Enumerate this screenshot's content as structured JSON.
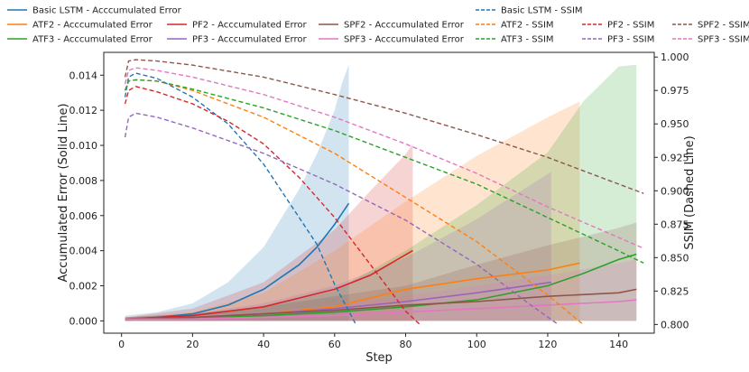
{
  "chart_data": {
    "type": "line",
    "title": "",
    "xlabel": "Step",
    "ylabel_left": "Accumulated Error (Solid Line)",
    "ylabel_right": "SSIM (Dashed Line)",
    "xlim": [
      -5,
      150
    ],
    "ylim_left": [
      -0.0007,
      0.0153
    ],
    "ylim_right": [
      0.7935,
      1.0035
    ],
    "x_ticks": [
      0,
      20,
      40,
      60,
      80,
      100,
      120,
      140
    ],
    "y_left_ticks": [
      0.0,
      0.002,
      0.004,
      0.006,
      0.008,
      0.01,
      0.012,
      0.014
    ],
    "y_left_tick_labels": [
      "0.000",
      "0.002",
      "0.004",
      "0.006",
      "0.008",
      "0.010",
      "0.012",
      "0.014"
    ],
    "y_right_ticks": [
      0.8,
      0.825,
      0.85,
      0.875,
      0.9,
      0.925,
      0.95,
      0.975,
      1.0
    ],
    "y_right_tick_labels": [
      "0.800",
      "0.825",
      "0.850",
      "0.875",
      "0.900",
      "0.925",
      "0.950",
      "0.975",
      "1.000"
    ],
    "grid": false,
    "legend_placement": "top",
    "legend": [
      {
        "label": "Basic LSTM - Acccumulated Error",
        "color": "#1f77b4",
        "style": "solid"
      },
      {
        "label": "ATF2 - Acccumulated Error",
        "color": "#ff7f0e",
        "style": "solid"
      },
      {
        "label": "ATF3 - Acccumulated Error",
        "color": "#2ca02c",
        "style": "solid"
      },
      {
        "label": "PF2 - Acccumulated Error",
        "color": "#d62728",
        "style": "solid"
      },
      {
        "label": "PF3 - Acccumulated Error",
        "color": "#9467bd",
        "style": "solid"
      },
      {
        "label": "SPF2 - Acccumulated Error",
        "color": "#8c564b",
        "style": "solid"
      },
      {
        "label": "SPF3 - Acccumulated Error",
        "color": "#e377c2",
        "style": "solid"
      },
      {
        "label": "Basic LSTM - SSIM",
        "color": "#1f77b4",
        "style": "dashed"
      },
      {
        "label": "ATF2 - SSIM",
        "color": "#ff7f0e",
        "style": "dashed"
      },
      {
        "label": "ATF3 - SSIM",
        "color": "#2ca02c",
        "style": "dashed"
      },
      {
        "label": "PF2 - SSIM",
        "color": "#d62728",
        "style": "dashed"
      },
      {
        "label": "PF3 - SSIM",
        "color": "#9467bd",
        "style": "dashed"
      },
      {
        "label": "SPF2 - SSIM",
        "color": "#8c564b",
        "style": "dashed"
      },
      {
        "label": "SPF3 - SSIM",
        "color": "#e377c2",
        "style": "dashed"
      }
    ],
    "series": [
      {
        "name": "Basic LSTM",
        "color": "#1f77b4",
        "x_end": 64,
        "error": {
          "x": [
            1,
            10,
            20,
            30,
            40,
            50,
            55,
            60,
            64
          ],
          "y": [
            0.0001,
            0.0002,
            0.0004,
            0.0009,
            0.0018,
            0.0032,
            0.0042,
            0.0055,
            0.0067
          ]
        },
        "band": {
          "x": [
            1,
            10,
            20,
            30,
            40,
            50,
            55,
            60,
            62,
            64
          ],
          "upper": [
            0.0003,
            0.0005,
            0.001,
            0.0022,
            0.0042,
            0.0075,
            0.0095,
            0.012,
            0.0135,
            0.0146
          ]
        },
        "ssim": {
          "x": [
            1,
            2,
            4,
            10,
            20,
            30,
            40,
            50,
            55,
            60,
            63,
            66
          ],
          "y": [
            0.97,
            0.985,
            0.988,
            0.984,
            0.97,
            0.95,
            0.92,
            0.88,
            0.86,
            0.83,
            0.815,
            0.8
          ]
        }
      },
      {
        "name": "ATF2",
        "color": "#ff7f0e",
        "x_end": 129,
        "error": {
          "x": [
            1,
            20,
            40,
            60,
            70,
            80,
            100,
            120,
            129
          ],
          "y": [
            0.0001,
            0.0002,
            0.0004,
            0.0008,
            0.0013,
            0.0018,
            0.0024,
            0.0029,
            0.0033
          ]
        },
        "band": {
          "x": [
            1,
            20,
            40,
            60,
            80,
            100,
            120,
            129
          ],
          "upper": [
            0.0002,
            0.0005,
            0.0016,
            0.004,
            0.0068,
            0.0094,
            0.0116,
            0.0125
          ]
        },
        "ssim": {
          "x": [
            1,
            2,
            4,
            10,
            20,
            40,
            60,
            80,
            100,
            120,
            130
          ],
          "y": [
            0.975,
            0.982,
            0.983,
            0.982,
            0.975,
            0.955,
            0.928,
            0.895,
            0.862,
            0.822,
            0.8
          ]
        }
      },
      {
        "name": "ATF3",
        "color": "#2ca02c",
        "x_end": 145,
        "error": {
          "x": [
            1,
            20,
            40,
            60,
            80,
            100,
            120,
            130,
            140,
            145
          ],
          "y": [
            0.0001,
            0.0002,
            0.0003,
            0.0005,
            0.0008,
            0.0012,
            0.002,
            0.0027,
            0.0035,
            0.0038
          ]
        },
        "band": {
          "x": [
            1,
            20,
            40,
            60,
            80,
            100,
            120,
            130,
            140,
            145
          ],
          "upper": [
            0.0002,
            0.0004,
            0.0008,
            0.0017,
            0.004,
            0.0066,
            0.0096,
            0.0125,
            0.0145,
            0.0146
          ]
        },
        "ssim": {
          "x": [
            1,
            2,
            4,
            10,
            20,
            40,
            60,
            80,
            100,
            120,
            140,
            147
          ],
          "y": [
            0.975,
            0.982,
            0.983,
            0.982,
            0.976,
            0.962,
            0.945,
            0.925,
            0.905,
            0.88,
            0.855,
            0.846
          ]
        }
      },
      {
        "name": "PF2",
        "color": "#d62728",
        "x_end": 82,
        "error": {
          "x": [
            1,
            20,
            40,
            60,
            70,
            82
          ],
          "y": [
            0.0001,
            0.0003,
            0.0008,
            0.0018,
            0.0026,
            0.004
          ]
        },
        "band": {
          "x": [
            1,
            20,
            40,
            60,
            70,
            80,
            82
          ],
          "upper": [
            0.0002,
            0.0007,
            0.0022,
            0.0052,
            0.0074,
            0.0095,
            0.0101
          ]
        },
        "ssim": {
          "x": [
            1,
            2,
            4,
            10,
            20,
            30,
            40,
            50,
            60,
            70,
            80,
            84
          ],
          "y": [
            0.965,
            0.975,
            0.978,
            0.974,
            0.965,
            0.952,
            0.935,
            0.91,
            0.88,
            0.845,
            0.81,
            0.8
          ]
        }
      },
      {
        "name": "PF3",
        "color": "#9467bd",
        "x_end": 121,
        "error": {
          "x": [
            1,
            20,
            40,
            60,
            80,
            100,
            121
          ],
          "y": [
            0.0001,
            0.0002,
            0.0004,
            0.0007,
            0.0011,
            0.0016,
            0.0022
          ]
        },
        "band": {
          "x": [
            1,
            20,
            40,
            60,
            80,
            100,
            121
          ],
          "upper": [
            0.0002,
            0.0004,
            0.001,
            0.002,
            0.0036,
            0.0058,
            0.0085
          ]
        },
        "ssim": {
          "x": [
            1,
            2,
            4,
            10,
            20,
            40,
            60,
            80,
            100,
            115,
            123
          ],
          "y": [
            0.94,
            0.955,
            0.958,
            0.955,
            0.947,
            0.928,
            0.905,
            0.878,
            0.845,
            0.815,
            0.8
          ]
        }
      },
      {
        "name": "SPF2",
        "color": "#8c564b",
        "x_end": 145,
        "error": {
          "x": [
            1,
            20,
            40,
            60,
            80,
            100,
            120,
            140,
            145
          ],
          "y": [
            0.0001,
            0.0002,
            0.0004,
            0.0006,
            0.0009,
            0.0011,
            0.0014,
            0.0016,
            0.0018
          ]
        },
        "band": {
          "x": [
            1,
            20,
            40,
            60,
            80,
            100,
            120,
            140,
            145
          ],
          "upper": [
            0.0002,
            0.0004,
            0.0008,
            0.0014,
            0.002,
            0.0032,
            0.0043,
            0.0053,
            0.0056
          ]
        },
        "ssim": {
          "x": [
            1,
            2,
            4,
            10,
            20,
            40,
            60,
            80,
            100,
            120,
            140,
            147
          ],
          "y": [
            0.985,
            0.997,
            0.998,
            0.997,
            0.994,
            0.985,
            0.972,
            0.958,
            0.942,
            0.925,
            0.905,
            0.898
          ]
        }
      },
      {
        "name": "SPF3",
        "color": "#e377c2",
        "x_end": 145,
        "error": {
          "x": [
            1,
            20,
            40,
            60,
            80,
            100,
            120,
            140,
            145
          ],
          "y": [
            0.0001,
            0.0001,
            0.0002,
            0.0003,
            0.0005,
            0.0007,
            0.0009,
            0.0011,
            0.0012
          ]
        },
        "band": {
          "x": [
            1,
            20,
            40,
            60,
            80,
            100,
            120,
            140,
            145
          ],
          "upper": [
            0.0002,
            0.0003,
            0.0005,
            0.0009,
            0.0014,
            0.002,
            0.0026,
            0.0033,
            0.0035
          ]
        },
        "ssim": {
          "x": [
            1,
            2,
            4,
            10,
            20,
            40,
            60,
            80,
            100,
            120,
            140,
            147
          ],
          "y": [
            0.98,
            0.99,
            0.992,
            0.99,
            0.985,
            0.972,
            0.955,
            0.935,
            0.913,
            0.888,
            0.865,
            0.857
          ]
        }
      }
    ],
    "fill_order": [
      "Basic LSTM",
      "PF2",
      "ATF2",
      "ATF3",
      "PF3",
      "SPF2",
      "SPF3"
    ]
  }
}
